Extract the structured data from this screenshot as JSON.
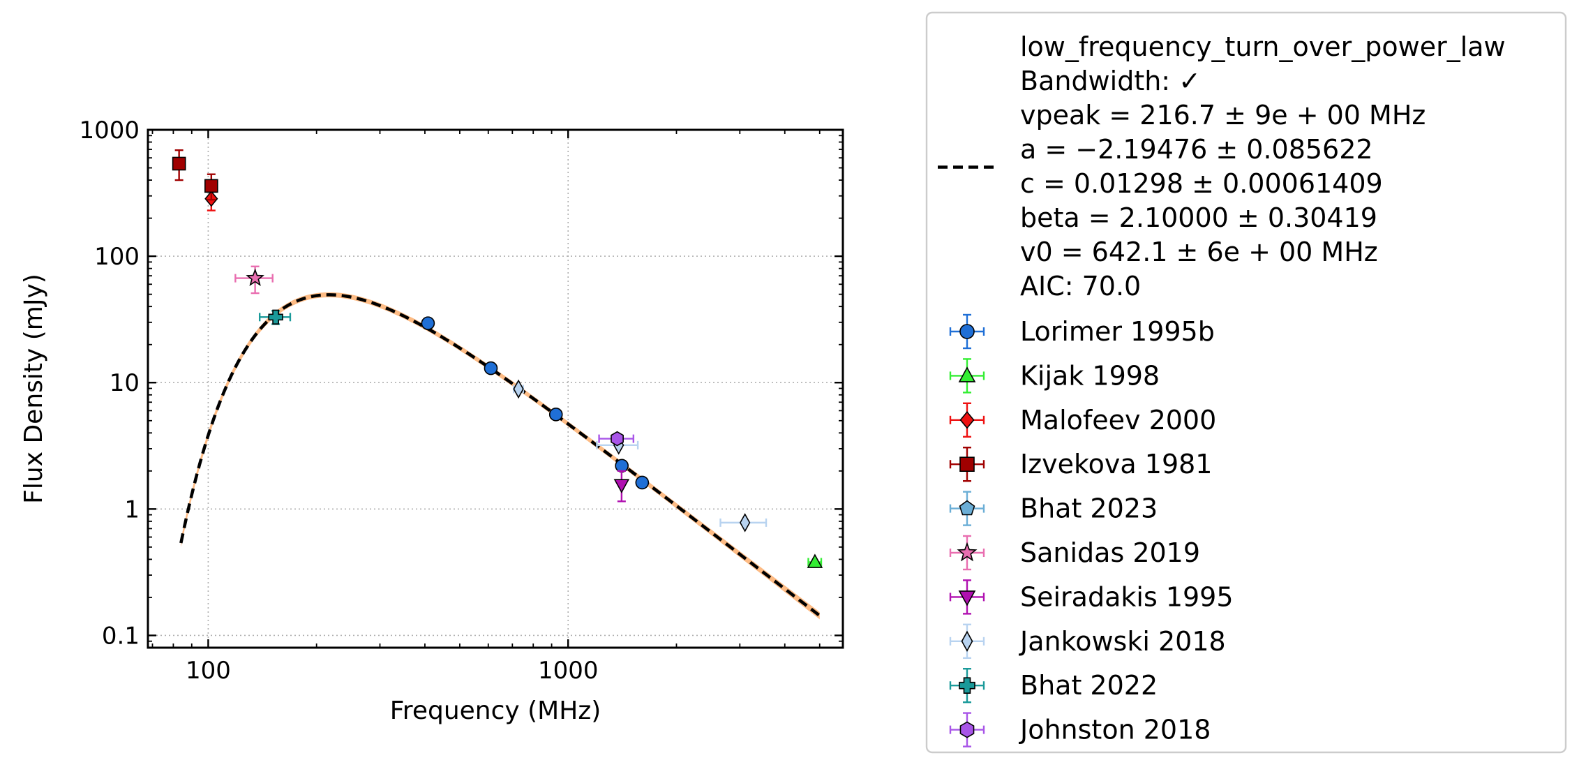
{
  "chart_data": {
    "type": "scatter",
    "title": "",
    "xlabel": "Frequency (MHz)",
    "ylabel": "Flux Density (mJy)",
    "xscale": "log",
    "yscale": "log",
    "xlim": [
      68,
      5800
    ],
    "ylim": [
      0.08,
      1000
    ],
    "xticks": [
      {
        "value": 100,
        "label": "100"
      },
      {
        "value": 1000,
        "label": "1000"
      }
    ],
    "yticks": [
      {
        "value": 0.1,
        "label": "0.1"
      },
      {
        "value": 1,
        "label": "1"
      },
      {
        "value": 10,
        "label": "10"
      },
      {
        "value": 100,
        "label": "100"
      },
      {
        "value": 1000,
        "label": "1000"
      }
    ],
    "grid": true,
    "legend_position": "outside-right",
    "fit": {
      "model": "low_frequency_turn_over_power_law",
      "lines": [
        "low_frequency_turn_over_power_law",
        "Bandwidth: ✓",
        "vpeak = 216.7 ± 9e + 00 MHz",
        "a = −2.19476 ± 0.085622",
        "c = 0.01298 ± 0.00061409",
        "beta = 2.10000 ± 0.30419",
        "v0 = 642.1 ± 6e + 00 MHz",
        "AIC: 70.0"
      ],
      "vpeak": 216.7,
      "a": -2.19476,
      "c": 0.01298,
      "beta": 2.1,
      "v0": 642.1,
      "range": [
        84,
        5000
      ],
      "line_color": "#000000",
      "band_color": "#fdbb84"
    },
    "series": [
      {
        "name": "Lorimer 1995b",
        "marker": "circle",
        "color": "#1f6fd6",
        "points": [
          {
            "x": 408,
            "y": 29.5
          },
          {
            "x": 610,
            "y": 13
          },
          {
            "x": 925,
            "y": 5.6
          },
          {
            "x": 1410,
            "y": 2.2
          },
          {
            "x": 1606,
            "y": 1.62
          }
        ]
      },
      {
        "name": "Kijak 1998",
        "marker": "triangle-up",
        "color": "#33ee33",
        "points": [
          {
            "x": 4850,
            "y": 0.38,
            "xerr": 200
          }
        ]
      },
      {
        "name": "Malofeev 2000",
        "marker": "diamond",
        "color": "#ee1111",
        "points": [
          {
            "x": 102,
            "y": 285,
            "yerr": [
              55,
              60
            ]
          }
        ]
      },
      {
        "name": "Izvekova 1981",
        "marker": "square",
        "color": "#a00000",
        "points": [
          {
            "x": 83,
            "y": 540,
            "yerr": [
              140,
              150
            ]
          },
          {
            "x": 102,
            "y": 360,
            "yerr": [
              80,
              85
            ]
          }
        ]
      },
      {
        "name": "Bhat 2023",
        "marker": "pentagon",
        "color": "#6baed6",
        "points": []
      },
      {
        "name": "Sanidas 2019",
        "marker": "star",
        "color": "#e96eb0",
        "points": [
          {
            "x": 135,
            "y": 67,
            "xerr": 16,
            "yerr": [
              16,
              16
            ]
          }
        ]
      },
      {
        "name": "Seiradakis 1995",
        "marker": "triangle-down",
        "color": "#b010b0",
        "points": [
          {
            "x": 1408,
            "y": 1.55,
            "yerr": [
              0.4,
              0.45
            ]
          }
        ]
      },
      {
        "name": "Jankowski 2018",
        "marker": "thin-diamond",
        "color": "#b8d3f0",
        "points": [
          {
            "x": 728,
            "y": 8.9,
            "xerr": 22
          },
          {
            "x": 1382,
            "y": 3.2,
            "xerr": 180
          },
          {
            "x": 3100,
            "y": 0.78,
            "xerr": 450
          }
        ]
      },
      {
        "name": "Bhat 2022",
        "marker": "plus",
        "color": "#1a9a9a",
        "points": [
          {
            "x": 154,
            "y": 33,
            "xerr": 15,
            "yerr": [
              4,
              4
            ]
          }
        ]
      },
      {
        "name": "Johnston 2018",
        "marker": "hexagon",
        "color": "#a855e8",
        "points": [
          {
            "x": 1369,
            "y": 3.6,
            "xerr": 150
          }
        ]
      }
    ]
  }
}
